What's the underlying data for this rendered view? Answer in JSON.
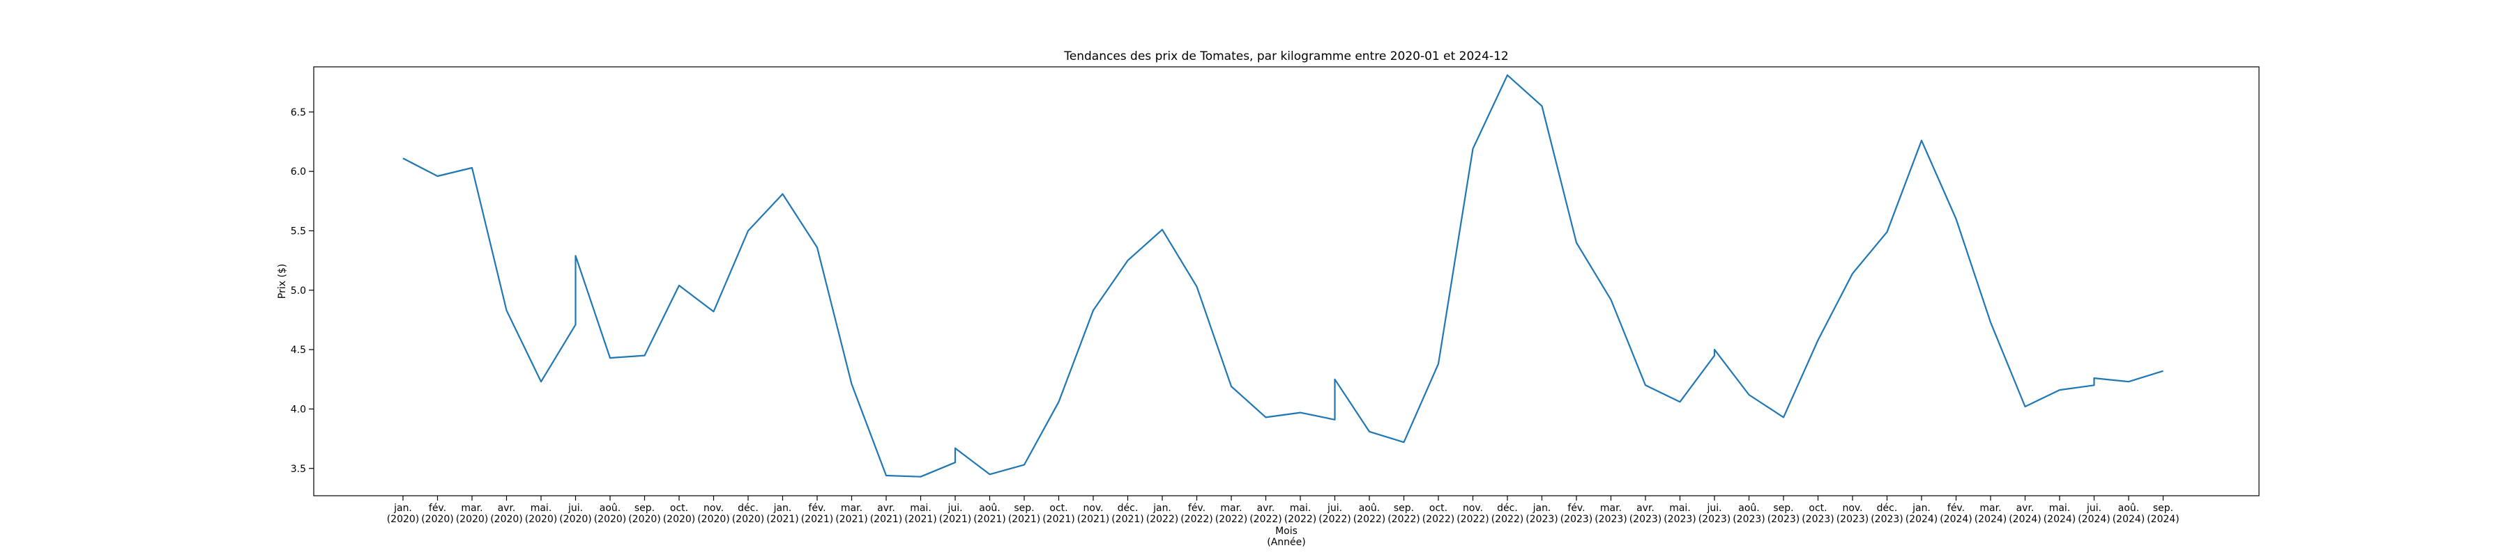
{
  "chart_data": {
    "type": "line",
    "title": "Tendances des prix de Tomates, par kilogramme entre 2020-01 et 2024-12",
    "xlabel_line1": "Mois",
    "xlabel_line2": "(Année)",
    "ylabel": "Prix ($)",
    "ylim": [
      3.27,
      6.88
    ],
    "yticks": [
      "3.5",
      "4.0",
      "4.5",
      "5.0",
      "5.5",
      "6.0",
      "6.5"
    ],
    "grid": false,
    "line_color": "#1f77b4",
    "x_ticks": [
      {
        "month": "jan.",
        "year": "(2020)"
      },
      {
        "month": "fév.",
        "year": "(2020)"
      },
      {
        "month": "mar.",
        "year": "(2020)"
      },
      {
        "month": "avr.",
        "year": "(2020)"
      },
      {
        "month": "mai.",
        "year": "(2020)"
      },
      {
        "month": "jui.",
        "year": "(2020)"
      },
      {
        "month": "aoû.",
        "year": "(2020)"
      },
      {
        "month": "sep.",
        "year": "(2020)"
      },
      {
        "month": "oct.",
        "year": "(2020)"
      },
      {
        "month": "nov.",
        "year": "(2020)"
      },
      {
        "month": "déc.",
        "year": "(2020)"
      },
      {
        "month": "jan.",
        "year": "(2021)"
      },
      {
        "month": "fév.",
        "year": "(2021)"
      },
      {
        "month": "mar.",
        "year": "(2021)"
      },
      {
        "month": "avr.",
        "year": "(2021)"
      },
      {
        "month": "mai.",
        "year": "(2021)"
      },
      {
        "month": "jui.",
        "year": "(2021)"
      },
      {
        "month": "aoû.",
        "year": "(2021)"
      },
      {
        "month": "sep.",
        "year": "(2021)"
      },
      {
        "month": "oct.",
        "year": "(2021)"
      },
      {
        "month": "nov.",
        "year": "(2021)"
      },
      {
        "month": "déc.",
        "year": "(2021)"
      },
      {
        "month": "jan.",
        "year": "(2022)"
      },
      {
        "month": "fév.",
        "year": "(2022)"
      },
      {
        "month": "mar.",
        "year": "(2022)"
      },
      {
        "month": "avr.",
        "year": "(2022)"
      },
      {
        "month": "mai.",
        "year": "(2022)"
      },
      {
        "month": "jui.",
        "year": "(2022)"
      },
      {
        "month": "aoû.",
        "year": "(2022)"
      },
      {
        "month": "sep.",
        "year": "(2022)"
      },
      {
        "month": "oct.",
        "year": "(2022)"
      },
      {
        "month": "nov.",
        "year": "(2022)"
      },
      {
        "month": "déc.",
        "year": "(2022)"
      },
      {
        "month": "jan.",
        "year": "(2023)"
      },
      {
        "month": "fév.",
        "year": "(2023)"
      },
      {
        "month": "mar.",
        "year": "(2023)"
      },
      {
        "month": "avr.",
        "year": "(2023)"
      },
      {
        "month": "mai.",
        "year": "(2023)"
      },
      {
        "month": "jui.",
        "year": "(2023)"
      },
      {
        "month": "aoû.",
        "year": "(2023)"
      },
      {
        "month": "sep.",
        "year": "(2023)"
      },
      {
        "month": "oct.",
        "year": "(2023)"
      },
      {
        "month": "nov.",
        "year": "(2023)"
      },
      {
        "month": "déc.",
        "year": "(2023)"
      },
      {
        "month": "jan.",
        "year": "(2024)"
      },
      {
        "month": "fév.",
        "year": "(2024)"
      },
      {
        "month": "mar.",
        "year": "(2024)"
      },
      {
        "month": "avr.",
        "year": "(2024)"
      },
      {
        "month": "mai.",
        "year": "(2024)"
      },
      {
        "month": "jui.",
        "year": "(2024)"
      },
      {
        "month": "aoû.",
        "year": "(2024)"
      },
      {
        "month": "sep.",
        "year": "(2024)"
      }
    ],
    "series": [
      {
        "points": [
          [
            0,
            6.11
          ],
          [
            1,
            5.96
          ],
          [
            2,
            6.03
          ],
          [
            3,
            4.83
          ],
          [
            4,
            4.23
          ],
          [
            5,
            4.71
          ],
          [
            5,
            5.29
          ],
          [
            6,
            4.43
          ],
          [
            7,
            4.45
          ],
          [
            8,
            5.04
          ],
          [
            9,
            4.82
          ],
          [
            10,
            5.5
          ],
          [
            11,
            5.81
          ],
          [
            12,
            5.36
          ],
          [
            13,
            4.21
          ],
          [
            14,
            3.44
          ],
          [
            15,
            3.43
          ],
          [
            16,
            3.55
          ],
          [
            16,
            3.67
          ],
          [
            17,
            3.45
          ],
          [
            18,
            3.53
          ],
          [
            19,
            4.06
          ],
          [
            20,
            4.83
          ],
          [
            21,
            5.25
          ],
          [
            22,
            5.51
          ],
          [
            23,
            5.03
          ],
          [
            24,
            4.19
          ],
          [
            25,
            3.93
          ],
          [
            26,
            3.97
          ],
          [
            27,
            3.91
          ],
          [
            27,
            4.25
          ],
          [
            28,
            3.81
          ],
          [
            29,
            3.72
          ],
          [
            30,
            4.38
          ],
          [
            31,
            6.19
          ],
          [
            32,
            6.81
          ],
          [
            33,
            6.55
          ],
          [
            34,
            5.4
          ],
          [
            35,
            4.92
          ],
          [
            36,
            4.2
          ],
          [
            37,
            4.06
          ],
          [
            38,
            4.45
          ],
          [
            38,
            4.5
          ],
          [
            39,
            4.12
          ],
          [
            40,
            3.93
          ],
          [
            41,
            4.58
          ],
          [
            42,
            5.14
          ],
          [
            43,
            5.49
          ],
          [
            44,
            6.26
          ],
          [
            45,
            5.6
          ],
          [
            46,
            4.73
          ],
          [
            47,
            4.02
          ],
          [
            48,
            4.16
          ],
          [
            49,
            4.2
          ],
          [
            49,
            4.26
          ],
          [
            50,
            4.23
          ],
          [
            51,
            4.32
          ]
        ]
      }
    ]
  }
}
